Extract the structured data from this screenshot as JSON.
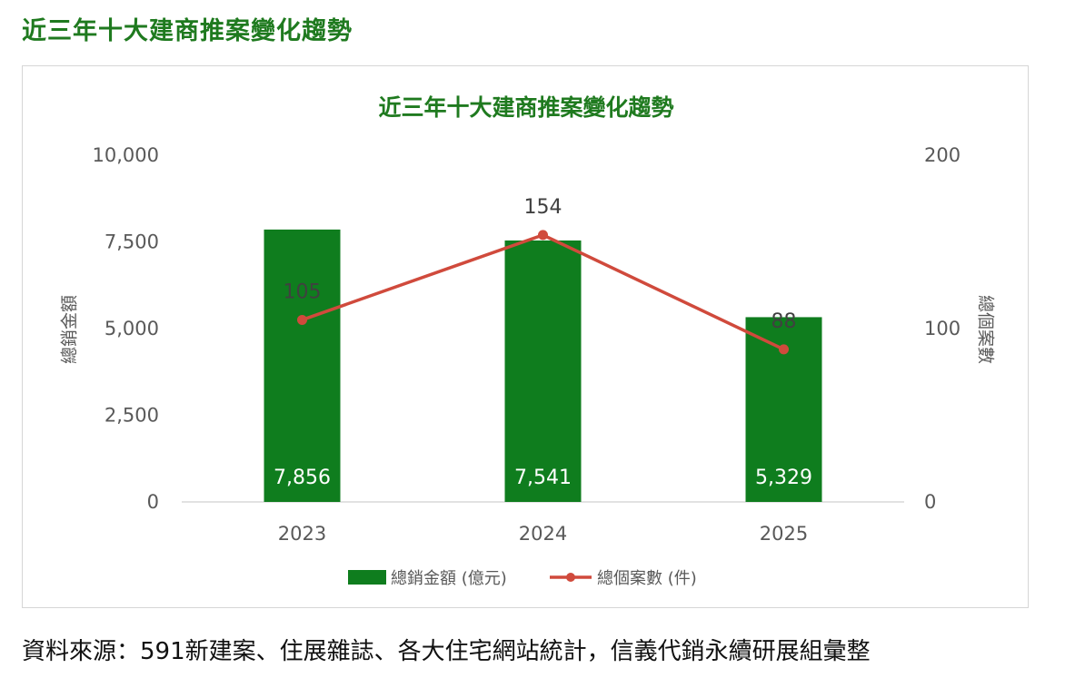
{
  "page": {
    "title": "近三年十大建商推案變化趨勢",
    "source": "資料來源：591新建案、住展雜誌、各大住宅網站統計，信義代銷永續研展組彙整"
  },
  "chart_data": {
    "type": "bar",
    "title": "近三年十大建商推案變化趨勢",
    "categories": [
      "2023",
      "2024",
      "2025"
    ],
    "series": [
      {
        "name": "總銷金額 (億元)",
        "type": "bar",
        "axis": "left",
        "color": "#0f7d1e",
        "values": [
          7856,
          7541,
          5329
        ],
        "labels": [
          "7,856",
          "7,541",
          "5,329"
        ]
      },
      {
        "name": "總個案數 (件)",
        "type": "line",
        "axis": "right",
        "color": "#d04a3c",
        "values": [
          105,
          154,
          88
        ],
        "labels": [
          "105",
          "154",
          "88"
        ]
      }
    ],
    "y_left": {
      "label": "總銷金額",
      "range": [
        0,
        10000
      ],
      "ticks": [
        "0",
        "2,500",
        "5,000",
        "7,500",
        "10,000"
      ],
      "tick_values": [
        0,
        2500,
        5000,
        7500,
        10000
      ]
    },
    "y_right": {
      "label": "總個案數",
      "range": [
        0,
        200
      ],
      "ticks": [
        "0",
        "100",
        "200"
      ],
      "tick_values": [
        0,
        100,
        200
      ]
    },
    "grid": false,
    "legend_position": "bottom"
  }
}
